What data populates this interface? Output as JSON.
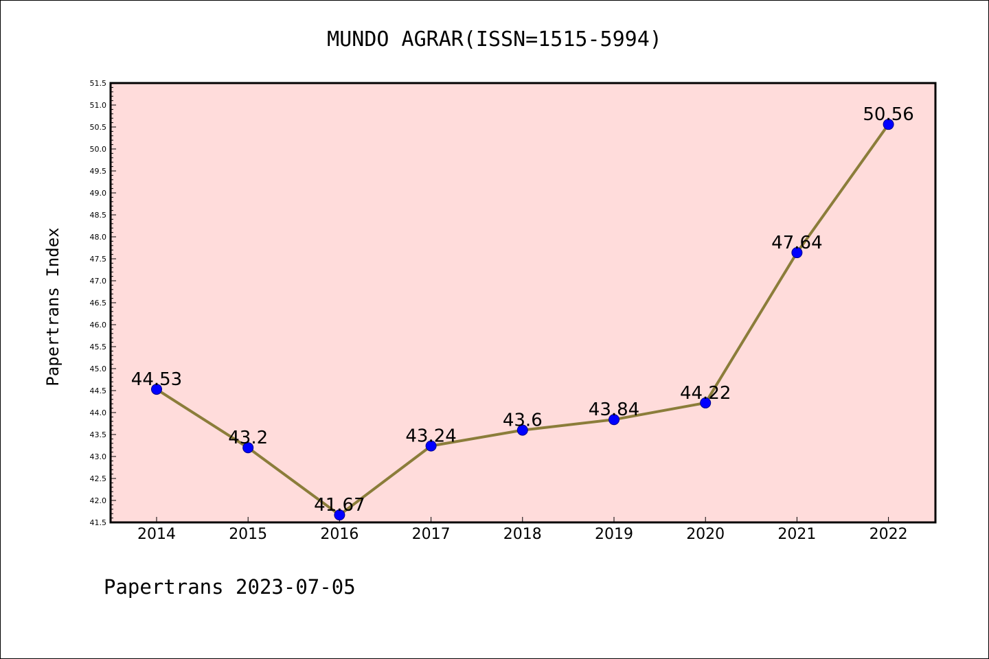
{
  "chart_data": {
    "type": "line",
    "title": "MUNDO AGRAR(ISSN=1515-5994)",
    "ylabel": "Papertrans Index",
    "xlabel": "",
    "categories": [
      "2014",
      "2015",
      "2016",
      "2017",
      "2018",
      "2019",
      "2020",
      "2021",
      "2022"
    ],
    "values": [
      44.53,
      43.2,
      41.67,
      43.24,
      43.6,
      43.84,
      44.22,
      47.64,
      50.56
    ],
    "data_labels": [
      "44.53",
      "43.2",
      "41.67",
      "43.24",
      "43.6",
      "43.84",
      "44.22",
      "47.64",
      "50.56"
    ],
    "ylim": [
      41.5,
      51.5
    ],
    "yticks": [
      "41.5",
      "42.0",
      "42.5",
      "43.0",
      "43.5",
      "44.0",
      "44.5",
      "45.0",
      "45.5",
      "46.0",
      "46.5",
      "47.0",
      "47.5",
      "48.0",
      "48.5",
      "49.0",
      "49.5",
      "50.0",
      "50.5",
      "51.0",
      "51.5"
    ],
    "grid": false,
    "legend": "none",
    "colors": {
      "plot_background": "#ffdcdb",
      "line": "#8b7d3a",
      "marker": "#0000ff",
      "marker_edge": "#00008b"
    }
  },
  "footer": "Papertrans 2023-07-05"
}
